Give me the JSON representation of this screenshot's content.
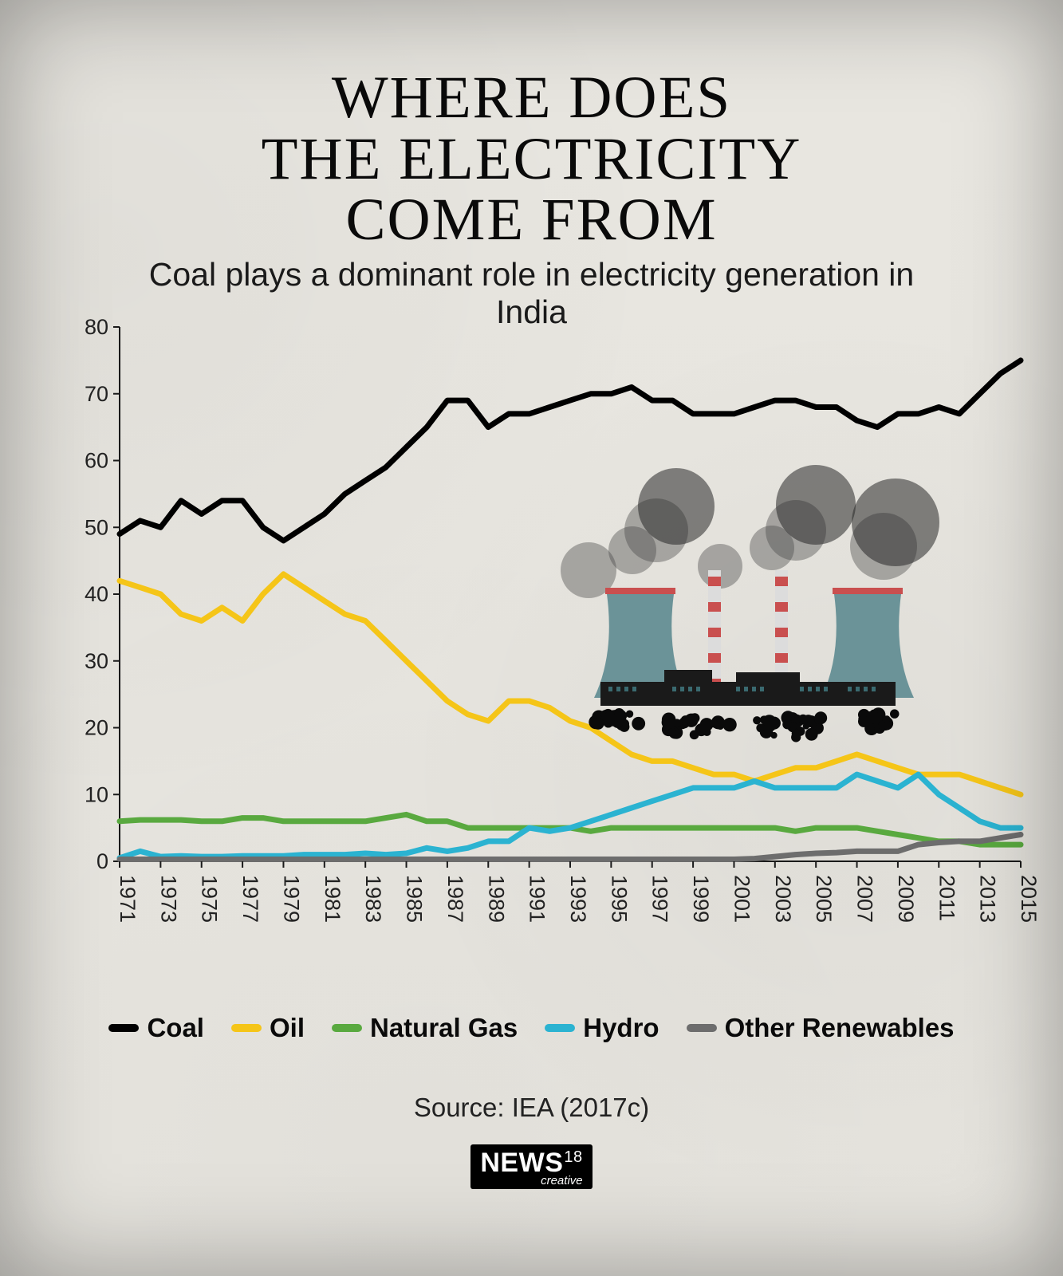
{
  "title_lines": [
    "WHERE DOES",
    "THE ELECTRICITY",
    "COME FROM"
  ],
  "subtitle": "Coal plays a dominant role in electricity generation in India",
  "source": "Source: IEA (2017c)",
  "brand": {
    "name": "NEWS",
    "suffix": "18",
    "tagline": "creative"
  },
  "chart": {
    "type": "line",
    "x_years": [
      1971,
      1972,
      1973,
      1974,
      1975,
      1976,
      1977,
      1978,
      1979,
      1980,
      1981,
      1982,
      1983,
      1984,
      1985,
      1986,
      1987,
      1988,
      1989,
      1990,
      1991,
      1992,
      1993,
      1994,
      1995,
      1996,
      1997,
      1998,
      1999,
      2000,
      2001,
      2002,
      2003,
      2004,
      2005,
      2006,
      2007,
      2008,
      2009,
      2010,
      2011,
      2012,
      2013,
      2014,
      2015
    ],
    "x_tick_years": [
      1971,
      1973,
      1975,
      1977,
      1979,
      1981,
      1983,
      1985,
      1987,
      1989,
      1991,
      1993,
      1995,
      1997,
      1999,
      2001,
      2003,
      2005,
      2007,
      2009,
      2011,
      2013,
      2015
    ],
    "ylim": [
      0,
      80
    ],
    "ytick_step": 10,
    "y_ticks": [
      0,
      10,
      20,
      30,
      40,
      50,
      60,
      70,
      80
    ],
    "axis_color": "#1a1a1a",
    "axis_width": 2,
    "line_width": 7,
    "background": "transparent",
    "tick_font_size": 27,
    "series": {
      "coal": {
        "label": "Coal",
        "color": "#000000",
        "values": [
          49,
          51,
          50,
          54,
          52,
          54,
          54,
          50,
          48,
          50,
          52,
          55,
          57,
          59,
          62,
          65,
          69,
          69,
          65,
          67,
          67,
          68,
          69,
          70,
          70,
          71,
          69,
          69,
          67,
          67,
          67,
          68,
          69,
          69,
          68,
          68,
          66,
          65,
          67,
          67,
          68,
          67,
          70,
          73,
          75
        ]
      },
      "oil": {
        "label": "Oil",
        "color": "#f5c518",
        "values": [
          42,
          41,
          40,
          37,
          36,
          38,
          36,
          40,
          43,
          41,
          39,
          37,
          36,
          33,
          30,
          27,
          24,
          22,
          21,
          24,
          24,
          23,
          21,
          20,
          18,
          16,
          15,
          15,
          14,
          13,
          13,
          12,
          13,
          14,
          14,
          15,
          16,
          15,
          14,
          13,
          13,
          13,
          12,
          11,
          10
        ]
      },
      "gas": {
        "label": "Natural Gas",
        "color": "#59a93f",
        "values": [
          6,
          6.2,
          6.2,
          6.2,
          6,
          6,
          6.5,
          6.5,
          6,
          6,
          6,
          6,
          6,
          6.5,
          7,
          6,
          6,
          5,
          5,
          5,
          5,
          5,
          5,
          4.5,
          5,
          5,
          5,
          5,
          5,
          5,
          5,
          5,
          5,
          4.5,
          5,
          5,
          5,
          4.5,
          4,
          3.5,
          3,
          3,
          2.5,
          2.5,
          2.5
        ]
      },
      "hydro": {
        "label": "Hydro",
        "color": "#2bb3d1",
        "values": [
          0.5,
          1.5,
          0.7,
          0.8,
          0.7,
          0.7,
          0.8,
          0.8,
          0.8,
          1,
          1,
          1,
          1.2,
          1,
          1.2,
          2,
          1.5,
          2,
          3,
          3,
          5,
          4.5,
          5,
          6,
          7,
          8,
          9,
          10,
          11,
          11,
          11,
          12,
          11,
          11,
          11,
          11,
          13,
          12,
          11,
          13,
          10,
          8,
          6,
          5,
          5
        ]
      },
      "other": {
        "label": "Other Renewables",
        "color": "#6d6d6d",
        "values": [
          0.3,
          0.3,
          0.3,
          0.3,
          0.3,
          0.3,
          0.3,
          0.3,
          0.3,
          0.3,
          0.3,
          0.3,
          0.3,
          0.3,
          0.3,
          0.3,
          0.3,
          0.3,
          0.3,
          0.3,
          0.3,
          0.3,
          0.3,
          0.3,
          0.3,
          0.3,
          0.3,
          0.3,
          0.3,
          0.3,
          0.3,
          0.4,
          0.7,
          1,
          1.2,
          1.3,
          1.5,
          1.5,
          1.5,
          2.5,
          2.8,
          3,
          3,
          3.5,
          4
        ]
      }
    },
    "legend_order": [
      "coal",
      "oil",
      "gas",
      "hydro",
      "other"
    ]
  },
  "plant_colors": {
    "smoke_dark": "rgba(40,40,40,0.55)",
    "smoke_light": "rgba(70,70,70,0.4)",
    "tower": "#6b9398",
    "tower_top": "#c94f4f",
    "stack": "#dcdcdc",
    "stack_stripe": "#c94f4f",
    "base": "#1a1a1a",
    "coal": "#0a0a0a"
  }
}
